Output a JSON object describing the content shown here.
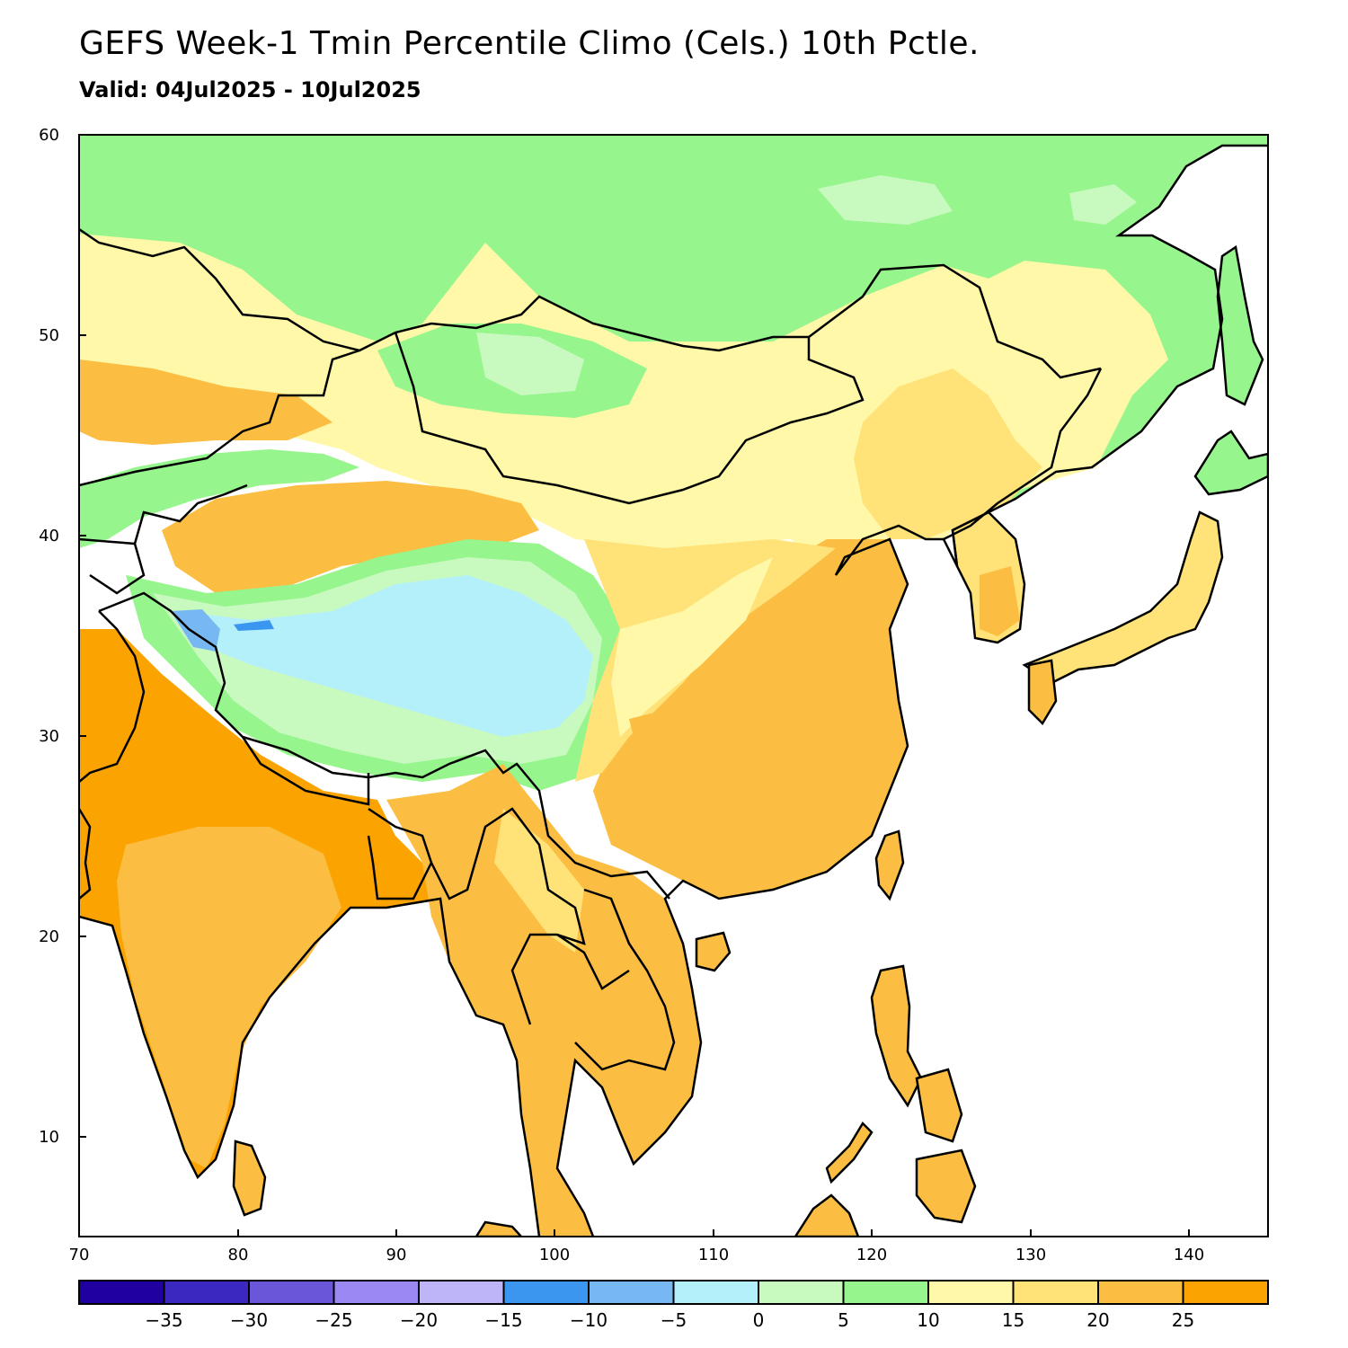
{
  "title": "GEFS Week-1 Tmin Percentile Climo (Cels.) 10th Pctle.",
  "subtitle": "Valid: 04Jul2025 - 10Jul2025",
  "map": {
    "lon_range": [
      70,
      145
    ],
    "lat_range": [
      5,
      60
    ],
    "lon_ticks": [
      "70",
      "80",
      "90",
      "100",
      "110",
      "120",
      "130",
      "140"
    ],
    "lat_ticks": [
      "10",
      "20",
      "30",
      "40",
      "50",
      "60"
    ],
    "ocean_color": "#ffffff",
    "coastline_color": "#000000"
  },
  "colorbar": {
    "labels": [
      "-35",
      "-30",
      "-25",
      "-20",
      "-15",
      "-10",
      "-5",
      "0",
      "5",
      "10",
      "15",
      "20",
      "25"
    ],
    "colors": [
      "#2000a0",
      "#3a28c0",
      "#6a56d8",
      "#9b88f2",
      "#beb4f8",
      "#3a96ee",
      "#78b8f2",
      "#b4f0fa",
      "#c8fac0",
      "#96f58c",
      "#fff8a8",
      "#ffe278",
      "#fbbe42",
      "#fba300"
    ]
  }
}
